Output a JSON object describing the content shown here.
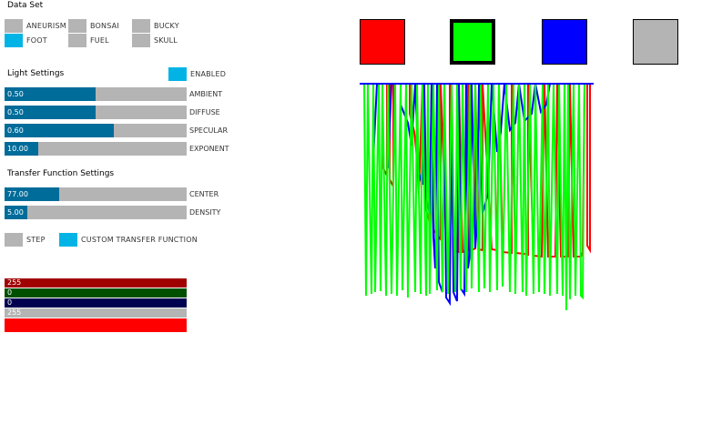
{
  "dataset": {
    "heading": "Data Set",
    "options": [
      {
        "label": "ANEURISM",
        "selected": false
      },
      {
        "label": "BONSAI",
        "selected": false
      },
      {
        "label": "BUCKY",
        "selected": false
      },
      {
        "label": "FOOT",
        "selected": true
      },
      {
        "label": "FUEL",
        "selected": false
      },
      {
        "label": "SKULL",
        "selected": false
      }
    ]
  },
  "light": {
    "heading": "Light Settings",
    "enabled_label": "ENABLED",
    "enabled": true,
    "sliders": [
      {
        "label": "AMBIENT",
        "value": "0.50",
        "fraction": 0.5
      },
      {
        "label": "DIFFUSE",
        "value": "0.50",
        "fraction": 0.5
      },
      {
        "label": "SPECULAR",
        "value": "0.60",
        "fraction": 0.6
      },
      {
        "label": "EXPONENT",
        "value": "10.00",
        "fraction": 0.185
      }
    ]
  },
  "transfer": {
    "heading": "Transfer Function Settings",
    "sliders": [
      {
        "label": "CENTER",
        "value": "77.00",
        "fraction": 0.3
      },
      {
        "label": "DENSITY",
        "value": "5.00",
        "fraction": 0.125
      }
    ],
    "step_label": "STEP",
    "step_enabled": false,
    "custom_label": "CUSTOM TRANSFER FUNCTION",
    "custom_enabled": true
  },
  "color_channels": [
    {
      "name": "red",
      "value": "255",
      "color": "#a00000"
    },
    {
      "name": "green",
      "value": "0",
      "color": "#005000"
    },
    {
      "name": "blue",
      "value": "0",
      "color": "#000050"
    },
    {
      "name": "alpha",
      "value": "255",
      "color": "#b4b4b4"
    }
  ],
  "current_color": "#ff0000",
  "swatches": [
    {
      "name": "red",
      "color": "#ff0000",
      "selected": false
    },
    {
      "name": "green",
      "color": "#00ff00",
      "selected": true
    },
    {
      "name": "blue",
      "color": "#0000ff",
      "selected": false
    },
    {
      "name": "gray",
      "color": "#b4b4b4",
      "selected": false
    }
  ],
  "colors": {
    "accent_on": "#02b4e6",
    "slider_fill": "#006c9a",
    "slider_track": "#b4b4b4"
  }
}
